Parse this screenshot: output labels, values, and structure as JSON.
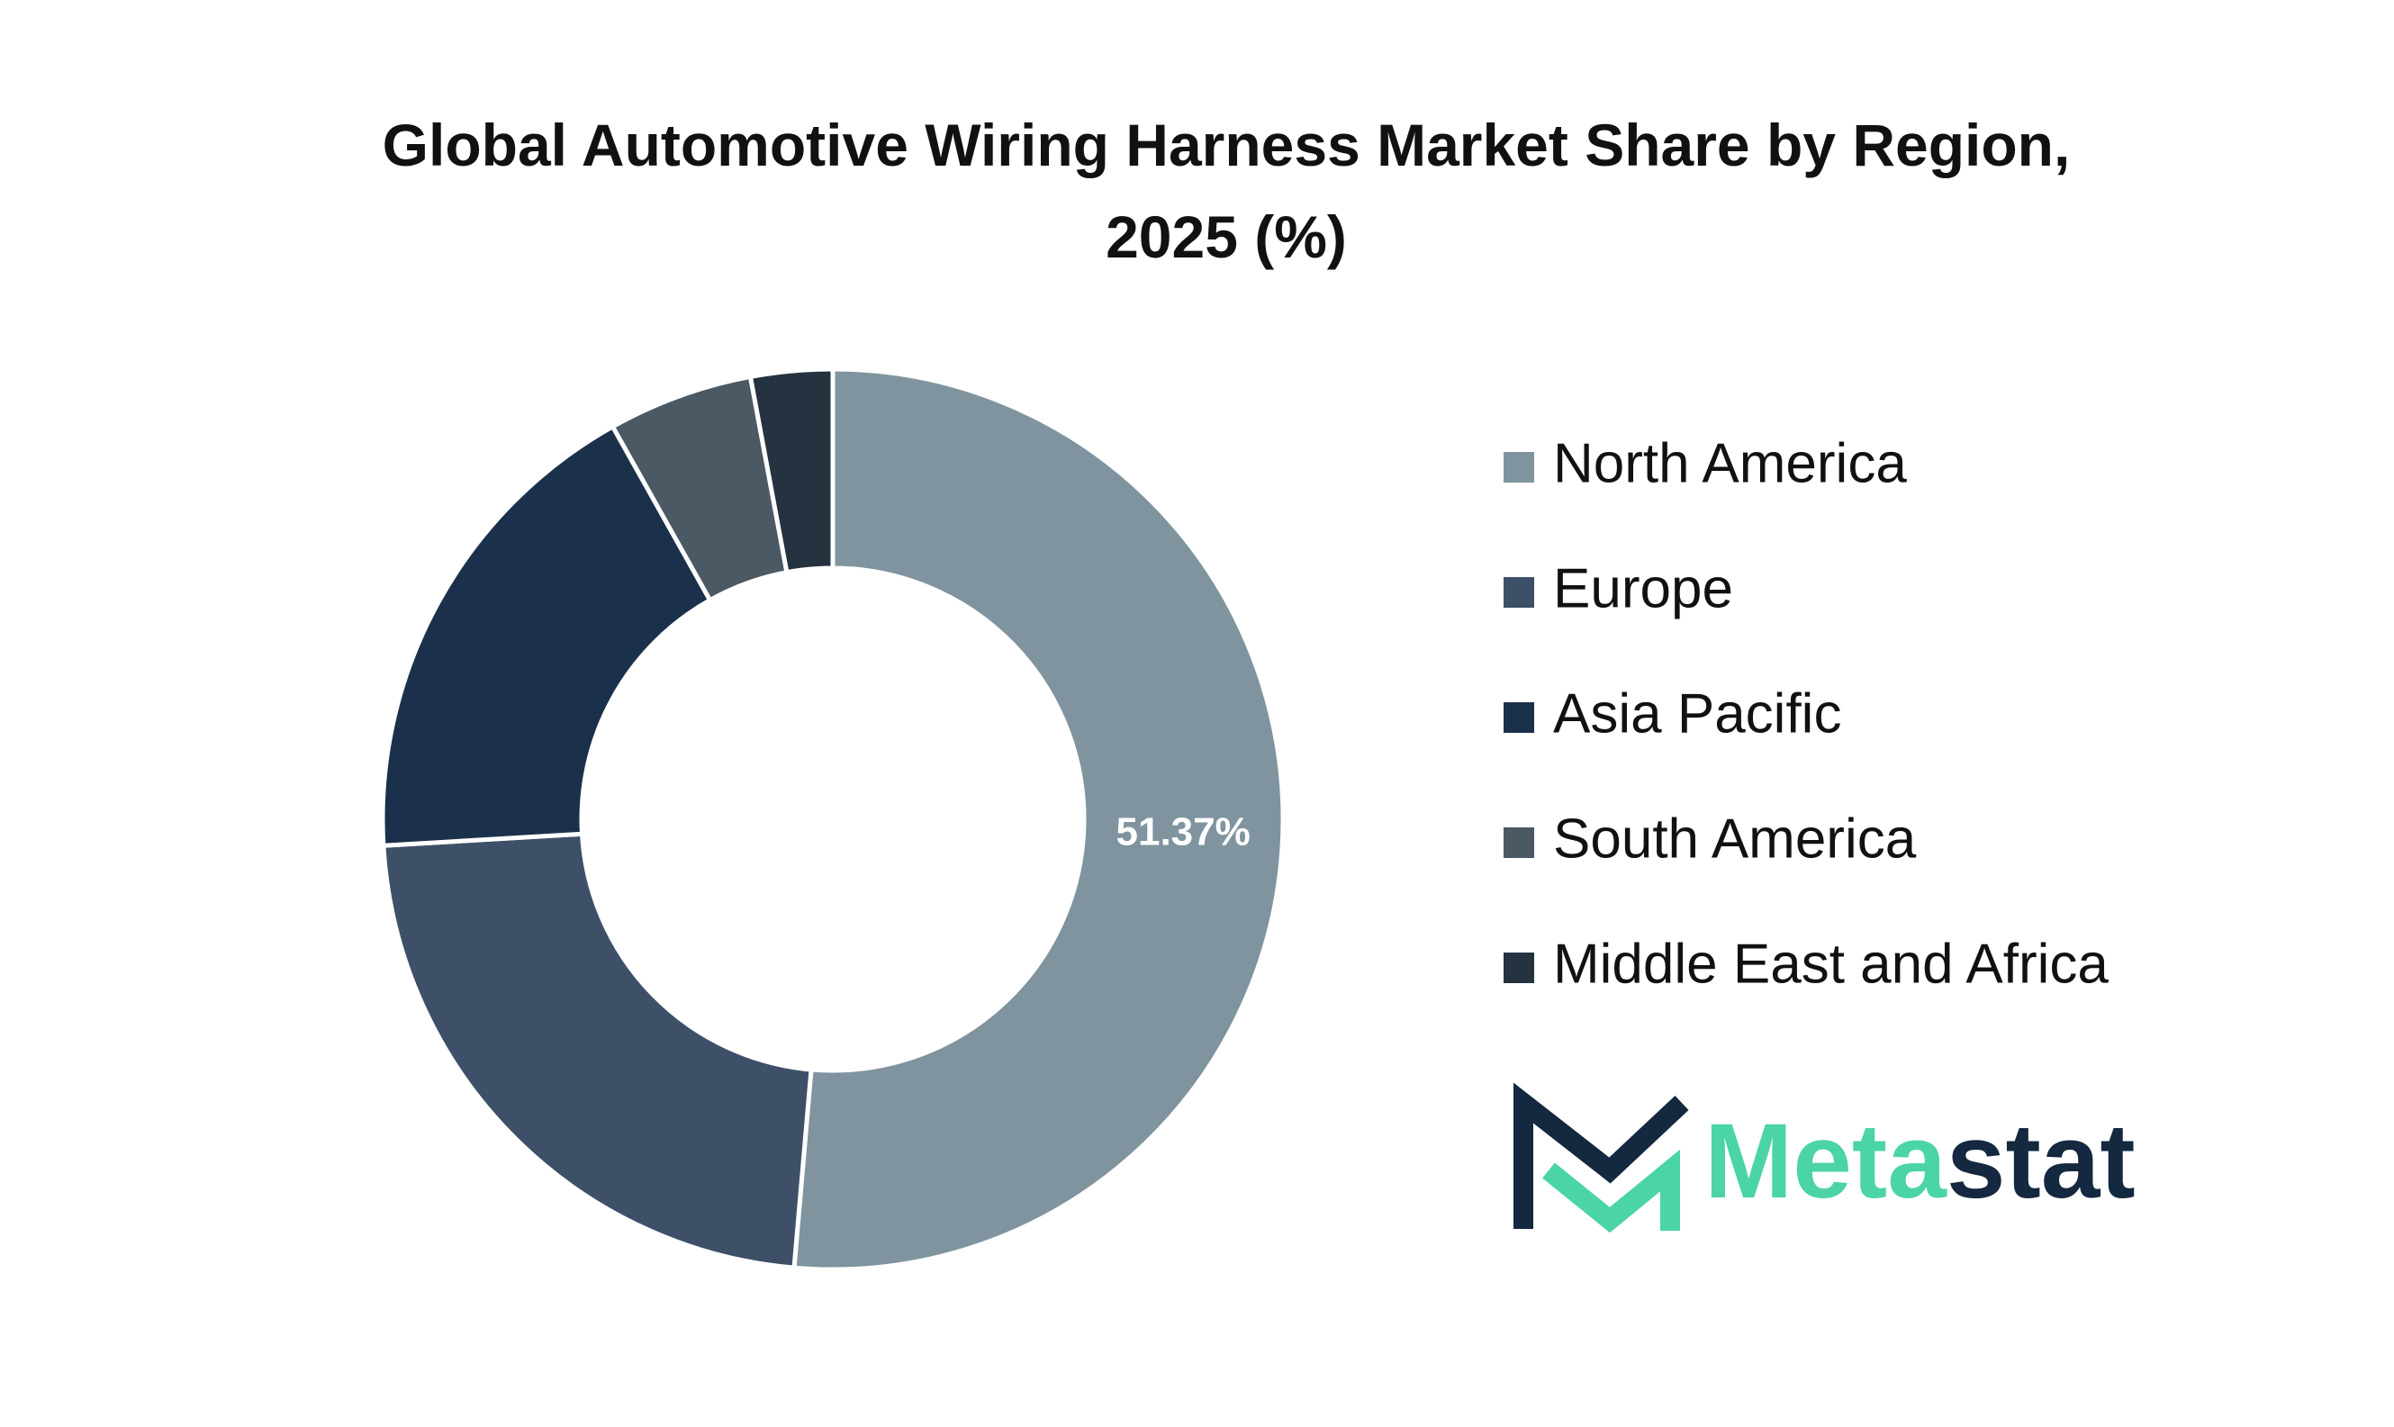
{
  "chart_data": {
    "type": "pie",
    "title": "Global Automotive Wiring Harness Market Share by Region, 2025 (%)",
    "categories": [
      "North America",
      "Europe",
      "Asia Pacific",
      "South America",
      "Middle East and Africa"
    ],
    "values": [
      51.37,
      22.7,
      17.8,
      5.2,
      2.93
    ],
    "value_labels": [
      "51.37%",
      null,
      null,
      null,
      null
    ],
    "colors": [
      "#7f949e",
      "#3d5068",
      "#1b314b",
      "#4a5964",
      "#25323f"
    ],
    "donut": true,
    "legend": "right"
  },
  "logo": {
    "text_start": "Meta",
    "text_end": "stat"
  }
}
